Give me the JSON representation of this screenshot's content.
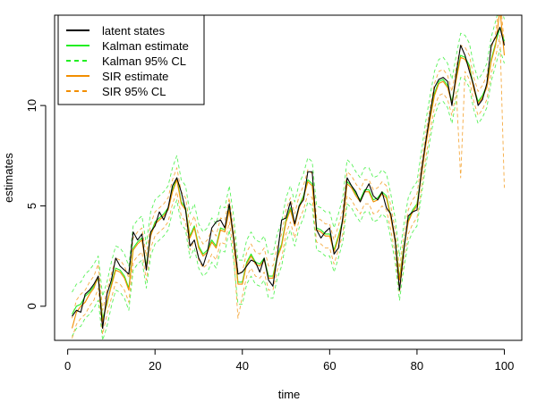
{
  "chart_data": {
    "type": "line",
    "title": "",
    "xlabel": "time",
    "ylabel": "estimates",
    "xlim": [
      -3,
      104
    ],
    "ylim": [
      -1.7,
      14.5
    ],
    "xticks": [
      0,
      20,
      40,
      60,
      80,
      100
    ],
    "yticks": [
      0,
      5,
      10
    ],
    "grid": false,
    "legend_position": "top-left",
    "legend": [
      {
        "label": "latent states",
        "color": "#000000",
        "dash": "solid"
      },
      {
        "label": "Kalman estimate",
        "color": "#22ee22",
        "dash": "solid"
      },
      {
        "label": "Kalman 95% CL",
        "color": "#22ee22",
        "dash": "dashed"
      },
      {
        "label": "SIR estimate",
        "color": "#f28e00",
        "dash": "solid"
      },
      {
        "label": "SIR 95% CL",
        "color": "#f28e00",
        "dash": "dashed"
      }
    ],
    "x": [
      1,
      2,
      3,
      4,
      5,
      6,
      7,
      8,
      9,
      10,
      11,
      12,
      13,
      14,
      15,
      16,
      17,
      18,
      19,
      20,
      21,
      22,
      23,
      24,
      25,
      26,
      27,
      28,
      29,
      30,
      31,
      32,
      33,
      34,
      35,
      36,
      37,
      38,
      39,
      40,
      41,
      42,
      43,
      44,
      45,
      46,
      47,
      48,
      49,
      50,
      51,
      52,
      53,
      54,
      55,
      56,
      57,
      58,
      59,
      60,
      61,
      62,
      63,
      64,
      65,
      66,
      67,
      68,
      69,
      70,
      71,
      72,
      73,
      74,
      75,
      76,
      77,
      78,
      79,
      80,
      81,
      82,
      83,
      84,
      85,
      86,
      87,
      88,
      89,
      90,
      91,
      92,
      93,
      94,
      95,
      96,
      97,
      98,
      99,
      100
    ],
    "series": [
      {
        "name": "latent states",
        "color": "#000000",
        "dash": "solid",
        "values": [
          -0.5,
          -0.2,
          -0.3,
          0.6,
          0.8,
          1.1,
          1.5,
          -1.1,
          0.6,
          1.3,
          2.4,
          2.0,
          1.8,
          1.6,
          3.7,
          3.3,
          3.6,
          1.8,
          3.7,
          4.0,
          4.7,
          4.3,
          4.9,
          6.0,
          6.4,
          5.7,
          4.8,
          3.0,
          3.3,
          2.4,
          2.0,
          2.7,
          3.9,
          4.2,
          4.3,
          3.9,
          5.1,
          3.4,
          1.6,
          1.7,
          2.0,
          2.3,
          2.2,
          1.7,
          2.4,
          1.3,
          1.0,
          2.5,
          4.3,
          4.4,
          5.2,
          4.1,
          5.0,
          5.3,
          6.7,
          6.7,
          3.8,
          3.4,
          3.7,
          3.9,
          2.6,
          2.9,
          4.4,
          6.4,
          6.0,
          5.7,
          5.2,
          5.7,
          6.1,
          5.5,
          5.3,
          5.7,
          4.9,
          4.6,
          3.3,
          0.8,
          2.8,
          4.5,
          4.7,
          4.8,
          6.7,
          8.2,
          9.6,
          10.9,
          11.3,
          11.4,
          11.2,
          10.0,
          11.6,
          13.0,
          12.5,
          11.7,
          11.0,
          10.0,
          10.3,
          11.1,
          13.0,
          13.4,
          13.9,
          13.0
        ]
      },
      {
        "name": "Kalman estimate",
        "color": "#22ee22",
        "dash": "solid",
        "values": [
          -0.4,
          0.0,
          0.1,
          0.5,
          0.7,
          1.0,
          1.4,
          -0.6,
          0.1,
          1.1,
          1.9,
          1.8,
          1.5,
          0.9,
          2.9,
          3.2,
          3.4,
          2.0,
          3.6,
          4.2,
          4.4,
          4.6,
          4.9,
          5.8,
          6.4,
          5.2,
          4.9,
          3.5,
          4.0,
          3.0,
          2.6,
          2.8,
          3.3,
          3.0,
          3.9,
          3.8,
          4.9,
          3.4,
          1.2,
          1.2,
          2.2,
          2.6,
          2.2,
          2.1,
          2.4,
          1.5,
          1.5,
          2.5,
          3.1,
          4.3,
          4.9,
          4.1,
          5.0,
          5.5,
          6.3,
          6.1,
          3.9,
          3.8,
          3.6,
          3.6,
          2.8,
          3.5,
          4.3,
          6.2,
          6.0,
          5.6,
          5.3,
          5.8,
          5.8,
          5.3,
          5.4,
          5.7,
          5.5,
          4.5,
          3.3,
          1.4,
          3.0,
          4.3,
          4.8,
          5.1,
          6.6,
          8.1,
          9.4,
          10.6,
          11.2,
          11.3,
          11.0,
          10.2,
          11.4,
          12.5,
          12.4,
          12.0,
          10.9,
          10.2,
          10.5,
          11.0,
          12.3,
          13.1,
          13.9,
          13.2
        ]
      },
      {
        "name": "Kalman 95% CL lower",
        "color": "#22ee22",
        "dash": "dashed",
        "values": [
          -1.5,
          -1.1,
          -1.0,
          -0.6,
          -0.4,
          -0.1,
          0.3,
          -1.7,
          -1.0,
          0.0,
          0.8,
          0.7,
          0.4,
          -0.2,
          1.8,
          2.1,
          2.3,
          0.9,
          2.5,
          3.1,
          3.3,
          3.5,
          3.8,
          4.7,
          5.3,
          4.1,
          3.8,
          2.4,
          2.9,
          1.9,
          1.5,
          1.7,
          2.2,
          1.9,
          2.8,
          2.7,
          3.8,
          2.3,
          0.1,
          0.1,
          1.1,
          1.5,
          1.1,
          1.0,
          1.3,
          0.4,
          0.4,
          1.4,
          2.0,
          3.2,
          3.8,
          3.0,
          3.9,
          4.4,
          5.2,
          5.0,
          2.8,
          2.7,
          2.5,
          2.5,
          1.7,
          2.4,
          3.2,
          5.1,
          4.9,
          4.5,
          4.2,
          4.7,
          4.7,
          4.2,
          4.3,
          4.6,
          4.4,
          3.4,
          2.2,
          0.3,
          1.9,
          3.2,
          3.7,
          4.0,
          5.5,
          7.0,
          8.3,
          9.5,
          10.1,
          10.2,
          9.9,
          9.1,
          10.3,
          11.4,
          11.3,
          10.9,
          9.8,
          9.1,
          9.4,
          9.9,
          11.2,
          12.0,
          12.8,
          12.1
        ]
      },
      {
        "name": "Kalman 95% CL upper",
        "color": "#22ee22",
        "dash": "dashed",
        "values": [
          0.7,
          1.1,
          1.2,
          1.6,
          1.8,
          2.1,
          2.5,
          0.5,
          1.2,
          2.2,
          3.0,
          2.9,
          2.6,
          2.0,
          4.0,
          4.3,
          4.5,
          3.1,
          4.7,
          5.3,
          5.5,
          5.7,
          6.0,
          6.9,
          7.5,
          6.3,
          6.0,
          4.6,
          5.1,
          4.1,
          3.7,
          3.9,
          4.4,
          4.1,
          5.0,
          4.9,
          6.0,
          4.5,
          2.3,
          2.3,
          3.3,
          3.7,
          3.3,
          3.2,
          3.5,
          2.6,
          2.6,
          3.6,
          4.2,
          5.4,
          6.0,
          5.2,
          6.1,
          6.6,
          7.4,
          7.2,
          5.0,
          4.9,
          4.7,
          4.7,
          3.9,
          4.6,
          5.4,
          7.3,
          7.1,
          6.7,
          6.4,
          6.9,
          6.9,
          6.4,
          6.5,
          6.8,
          6.6,
          5.6,
          4.4,
          2.5,
          4.1,
          5.4,
          5.9,
          6.2,
          7.7,
          9.2,
          10.5,
          11.7,
          12.3,
          12.4,
          12.1,
          11.3,
          12.5,
          13.6,
          13.5,
          13.1,
          12.0,
          11.3,
          11.6,
          12.1,
          13.4,
          14.2,
          15.0,
          14.3
        ]
      },
      {
        "name": "SIR estimate",
        "color": "#f28e00",
        "dash": "solid",
        "values": [
          -1.1,
          -0.3,
          0.0,
          0.2,
          0.6,
          0.9,
          1.5,
          -0.8,
          0.2,
          1.0,
          1.8,
          1.7,
          1.4,
          0.8,
          2.8,
          3.1,
          3.3,
          1.9,
          3.5,
          4.1,
          4.3,
          4.5,
          4.8,
          5.7,
          6.3,
          5.1,
          4.8,
          3.4,
          3.9,
          2.9,
          2.5,
          2.7,
          3.2,
          2.9,
          3.8,
          3.7,
          4.8,
          3.3,
          1.1,
          1.1,
          2.1,
          2.5,
          2.1,
          2.0,
          2.3,
          1.4,
          1.4,
          2.4,
          3.0,
          4.2,
          4.8,
          4.0,
          4.9,
          5.4,
          6.2,
          6.0,
          3.8,
          3.7,
          3.5,
          3.5,
          2.7,
          3.4,
          4.2,
          6.1,
          5.9,
          5.5,
          5.2,
          5.7,
          5.7,
          5.2,
          5.3,
          5.6,
          5.4,
          4.4,
          3.2,
          1.3,
          2.9,
          4.2,
          4.7,
          5.0,
          6.5,
          8.0,
          9.3,
          10.5,
          11.1,
          11.2,
          10.9,
          10.1,
          11.3,
          12.4,
          12.3,
          11.9,
          10.8,
          10.1,
          10.4,
          10.9,
          12.2,
          13.0,
          14.8,
          12.5
        ]
      },
      {
        "name": "SIR 95% CL lower",
        "color": "#f28e00",
        "dash": "dashed",
        "values": [
          -1.6,
          -0.9,
          -0.6,
          -0.4,
          0.0,
          0.3,
          0.9,
          -1.4,
          -0.4,
          0.4,
          1.2,
          1.1,
          0.8,
          0.2,
          2.2,
          2.5,
          2.7,
          1.3,
          2.9,
          3.5,
          3.7,
          3.9,
          4.2,
          5.1,
          5.7,
          4.5,
          4.2,
          2.8,
          3.3,
          2.3,
          1.9,
          2.1,
          2.6,
          2.3,
          3.2,
          3.1,
          4.2,
          2.7,
          -0.6,
          0.5,
          1.5,
          1.9,
          1.5,
          1.4,
          1.7,
          0.8,
          0.8,
          1.8,
          2.4,
          3.6,
          4.2,
          3.4,
          4.3,
          4.8,
          5.6,
          5.4,
          3.2,
          3.1,
          2.9,
          2.9,
          2.1,
          2.8,
          3.6,
          5.5,
          5.3,
          4.9,
          4.6,
          5.1,
          5.1,
          4.6,
          4.7,
          5.0,
          4.8,
          3.8,
          2.6,
          0.7,
          2.3,
          3.6,
          4.1,
          4.4,
          5.9,
          7.4,
          8.7,
          9.9,
          10.5,
          10.6,
          10.3,
          9.5,
          10.7,
          6.4,
          11.7,
          11.3,
          10.2,
          9.5,
          9.8,
          10.3,
          11.6,
          12.4,
          13.5,
          5.9
        ]
      },
      {
        "name": "SIR 95% CL upper",
        "color": "#f28e00",
        "dash": "dashed",
        "values": [
          -0.6,
          0.3,
          0.6,
          0.8,
          1.2,
          1.5,
          2.1,
          -0.2,
          0.8,
          1.6,
          2.4,
          2.3,
          2.0,
          1.4,
          3.4,
          3.7,
          3.9,
          2.5,
          4.1,
          4.7,
          4.9,
          5.1,
          5.4,
          6.3,
          6.9,
          5.7,
          5.4,
          4.0,
          4.5,
          3.5,
          3.1,
          3.3,
          3.8,
          3.5,
          4.4,
          4.3,
          5.4,
          3.9,
          1.7,
          1.7,
          2.7,
          3.1,
          2.7,
          2.6,
          2.9,
          2.0,
          2.0,
          3.0,
          3.6,
          4.8,
          5.4,
          4.6,
          5.5,
          6.0,
          6.8,
          6.6,
          4.4,
          4.3,
          4.1,
          4.1,
          3.3,
          4.0,
          4.8,
          6.7,
          6.5,
          6.1,
          5.8,
          6.3,
          6.3,
          5.8,
          5.9,
          6.2,
          6.0,
          5.0,
          3.8,
          1.9,
          3.5,
          4.8,
          5.3,
          5.6,
          7.1,
          8.6,
          9.9,
          11.1,
          11.7,
          11.8,
          11.5,
          10.7,
          11.9,
          13.0,
          12.9,
          12.5,
          11.4,
          10.7,
          11.0,
          11.5,
          12.8,
          13.6,
          15.4,
          13.1
        ]
      }
    ]
  }
}
